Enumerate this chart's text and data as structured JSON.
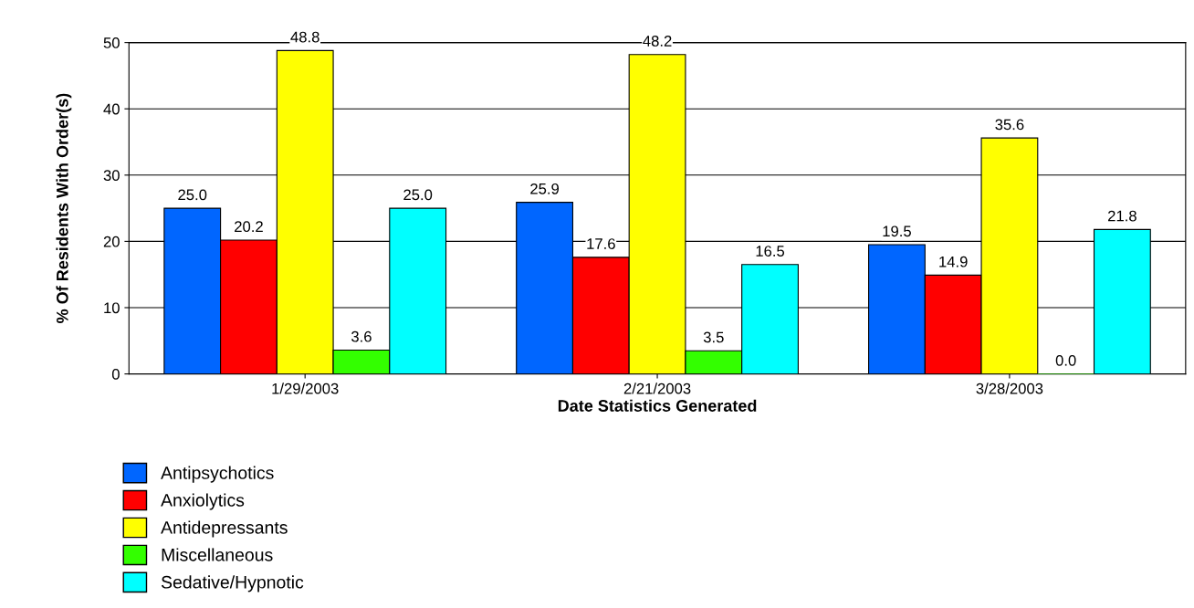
{
  "chart_data": {
    "type": "bar",
    "xlabel": "Date Statistics Generated",
    "ylabel": "% Of Residents With Order(s)",
    "categories": [
      "1/29/2003",
      "2/21/2003",
      "3/28/2003"
    ],
    "series": [
      {
        "name": "Antipsychotics",
        "color": "#0066ff",
        "values": [
          25.0,
          25.9,
          19.5
        ],
        "value_labels": [
          "25.0",
          "25.9",
          "19.5"
        ]
      },
      {
        "name": "Anxiolytics",
        "color": "#ff0000",
        "values": [
          20.2,
          17.6,
          14.9
        ],
        "value_labels": [
          "20.2",
          "17.6",
          "14.9"
        ]
      },
      {
        "name": "Antidepressants",
        "color": "#ffff00",
        "values": [
          48.8,
          48.2,
          35.6
        ],
        "value_labels": [
          "48.8",
          "48.2",
          "35.6"
        ]
      },
      {
        "name": "Miscellaneous",
        "color": "#33ff00",
        "values": [
          3.6,
          3.5,
          0.0
        ],
        "value_labels": [
          "3.6",
          "3.5",
          "0.0"
        ]
      },
      {
        "name": "Sedative/Hypnotic",
        "color": "#00ffff",
        "values": [
          25.0,
          16.5,
          21.8
        ],
        "value_labels": [
          "25.0",
          "16.5",
          "21.8"
        ]
      }
    ],
    "ylim": [
      0,
      50
    ],
    "yticks": [
      0,
      10,
      20,
      30,
      40,
      50
    ],
    "grid": "y",
    "legend": "bottom left"
  }
}
